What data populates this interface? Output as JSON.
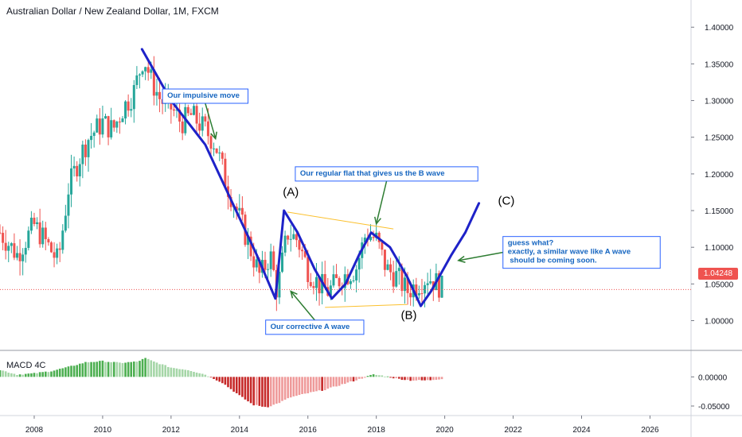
{
  "chart_title": "Australian Dollar / New Zealand Dollar, 1M, FXCM",
  "colors": {
    "bull": "#26a69a",
    "bear": "#ef5350",
    "wave": "#1e22c8",
    "annotation_text": "#1565c0",
    "arrow": "#2e7d32",
    "channel": "#fbc02d",
    "macd_pos_strong": "#4caf50",
    "macd_pos_weak": "#a5d6a7",
    "macd_neg_strong": "#c62828",
    "macd_neg_weak": "#ef9a9a",
    "last_price": "#ef5350"
  },
  "chart_data": [
    {
      "type": "candlestick",
      "title": "Australian Dollar / New Zealand Dollar, 1M, FXCM",
      "x_ticks": [
        "2008",
        "2010",
        "2012",
        "2014",
        "2016",
        "2018",
        "2020",
        "2022",
        "2024",
        "2026"
      ],
      "y_ticks": [
        "1.40000",
        "1.35000",
        "1.30000",
        "1.25000",
        "1.20000",
        "1.15000",
        "1.10000",
        "1.05000",
        "1.00000"
      ],
      "ylim": [
        0.98,
        1.41
      ],
      "xlim": [
        2007.0,
        2027.2
      ],
      "last_price": "1.04248",
      "price_path": [
        [
          2007.0,
          1.12
        ],
        [
          2007.5,
          1.09
        ],
        [
          2008.0,
          1.13
        ],
        [
          2008.3,
          1.11
        ],
        [
          2008.7,
          1.08
        ],
        [
          2009.0,
          1.18
        ],
        [
          2009.3,
          1.22
        ],
        [
          2009.6,
          1.25
        ],
        [
          2010.0,
          1.27
        ],
        [
          2010.3,
          1.26
        ],
        [
          2010.6,
          1.29
        ],
        [
          2010.9,
          1.31
        ],
        [
          2011.2,
          1.36
        ],
        [
          2011.4,
          1.33
        ],
        [
          2011.7,
          1.3
        ],
        [
          2012.0,
          1.29
        ],
        [
          2012.3,
          1.27
        ],
        [
          2012.6,
          1.28
        ],
        [
          2013.0,
          1.26
        ],
        [
          2013.3,
          1.24
        ],
        [
          2013.6,
          1.19
        ],
        [
          2014.0,
          1.14
        ],
        [
          2014.3,
          1.1
        ],
        [
          2014.6,
          1.06
        ],
        [
          2014.9,
          1.09
        ],
        [
          2015.1,
          1.04
        ],
        [
          2015.4,
          1.12
        ],
        [
          2015.7,
          1.11
        ],
        [
          2016.0,
          1.07
        ],
        [
          2016.3,
          1.05
        ],
        [
          2016.6,
          1.04
        ],
        [
          2017.0,
          1.06
        ],
        [
          2017.4,
          1.07
        ],
        [
          2017.7,
          1.12
        ],
        [
          2018.0,
          1.11
        ],
        [
          2018.3,
          1.07
        ],
        [
          2018.6,
          1.06
        ],
        [
          2018.9,
          1.04
        ],
        [
          2019.2,
          1.05
        ],
        [
          2019.5,
          1.06
        ],
        [
          2019.8,
          1.05
        ],
        [
          2019.95,
          1.042
        ]
      ],
      "wave_path": [
        [
          2011.15,
          1.37
        ],
        [
          2012.0,
          1.3
        ],
        [
          2013.0,
          1.24
        ],
        [
          2014.0,
          1.14
        ],
        [
          2014.5,
          1.09
        ],
        [
          2015.05,
          1.03
        ],
        [
          2015.3,
          1.15
        ],
        [
          2015.7,
          1.12
        ],
        [
          2016.2,
          1.07
        ],
        [
          2016.7,
          1.03
        ],
        [
          2017.1,
          1.05
        ],
        [
          2017.5,
          1.09
        ],
        [
          2017.85,
          1.12
        ],
        [
          2018.4,
          1.1
        ],
        [
          2018.9,
          1.06
        ],
        [
          2019.3,
          1.02
        ],
        [
          2019.6,
          1.04
        ],
        [
          2020.2,
          1.09
        ],
        [
          2020.6,
          1.12
        ],
        [
          2021.0,
          1.16
        ]
      ],
      "channel_upper": [
        [
          2015.4,
          1.148
        ],
        [
          2018.5,
          1.125
        ]
      ],
      "channel_lower": [
        [
          2016.5,
          1.018
        ],
        [
          2018.9,
          1.022
        ]
      ],
      "wave_labels": [
        {
          "text": "(A)",
          "x": 2015.5,
          "y": 1.17
        },
        {
          "text": "(B)",
          "x": 2018.95,
          "y": 1.002
        },
        {
          "text": "(C)",
          "x": 2021.8,
          "y": 1.158
        }
      ],
      "annotations": [
        {
          "text": "Our impulsive move",
          "box_at": [
            2013.0,
            1.306
          ],
          "arrow_to": [
            2013.3,
            1.248
          ]
        },
        {
          "text": "Our regular flat that gives us the B wave",
          "box_at": [
            2018.3,
            1.2
          ],
          "arrow_to": [
            2018.0,
            1.132
          ]
        },
        {
          "text": "Our corrective A wave",
          "box_at": [
            2016.2,
            0.991
          ],
          "arrow_to": [
            2015.5,
            1.04
          ]
        },
        {
          "text": "guess what?\nexactly, a similar wave like A wave\n should be coming soon.",
          "box_at": [
            2024.0,
            1.093
          ],
          "arrow_to": [
            2020.4,
            1.082
          ]
        }
      ]
    },
    {
      "type": "bar",
      "title": "MACD 4C",
      "y_ticks": [
        "0.00000",
        "-0.05000"
      ],
      "ylim": [
        -0.065,
        0.04
      ],
      "xlim": [
        2007.0,
        2027.2
      ],
      "histogram": [
        [
          2007.0,
          0.012
        ],
        [
          2007.5,
          0.004
        ],
        [
          2008.0,
          0.006
        ],
        [
          2008.5,
          0.01
        ],
        [
          2009.0,
          0.017
        ],
        [
          2009.5,
          0.025
        ],
        [
          2010.0,
          0.027
        ],
        [
          2010.5,
          0.024
        ],
        [
          2011.0,
          0.026
        ],
        [
          2011.25,
          0.032
        ],
        [
          2011.5,
          0.026
        ],
        [
          2012.0,
          0.016
        ],
        [
          2012.5,
          0.012
        ],
        [
          2013.0,
          0.004
        ],
        [
          2013.5,
          -0.01
        ],
        [
          2014.0,
          -0.032
        ],
        [
          2014.4,
          -0.048
        ],
        [
          2014.8,
          -0.052
        ],
        [
          2015.1,
          -0.046
        ],
        [
          2015.5,
          -0.035
        ],
        [
          2016.0,
          -0.028
        ],
        [
          2016.5,
          -0.022
        ],
        [
          2017.0,
          -0.013
        ],
        [
          2017.5,
          -0.004
        ],
        [
          2017.9,
          0.004
        ],
        [
          2018.2,
          0.002
        ],
        [
          2018.6,
          -0.003
        ],
        [
          2019.0,
          -0.006
        ],
        [
          2019.5,
          -0.006
        ],
        [
          2019.95,
          -0.003
        ]
      ]
    }
  ]
}
